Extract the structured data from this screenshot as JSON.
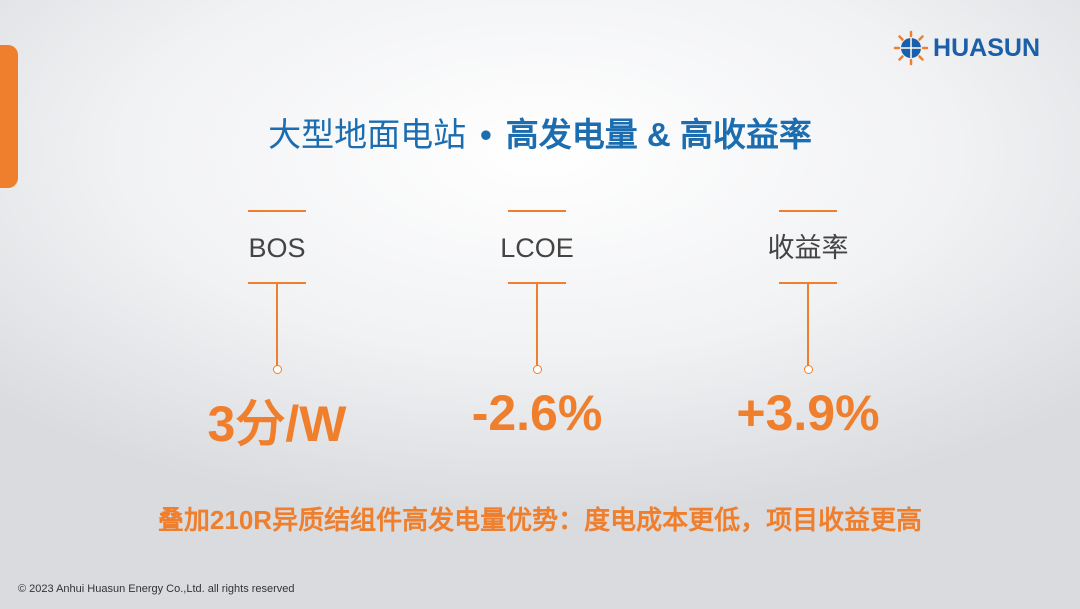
{
  "logo": "HUASUN",
  "title": {
    "prefix": "大型地面电站",
    "separator": "•",
    "highlight": "高发电量 & 高收益率"
  },
  "metrics": [
    {
      "label": "BOS",
      "value": "3分/W"
    },
    {
      "label": "LCOE",
      "value": "-2.6%"
    },
    {
      "label": "收益率",
      "value": "+3.9%"
    }
  ],
  "tagline": "叠加210R异质结组件高发电量优势：度电成本更低，项目收益更高",
  "footer": "© 2023 Anhui Huasun Energy Co.,Ltd. all rights reserved"
}
